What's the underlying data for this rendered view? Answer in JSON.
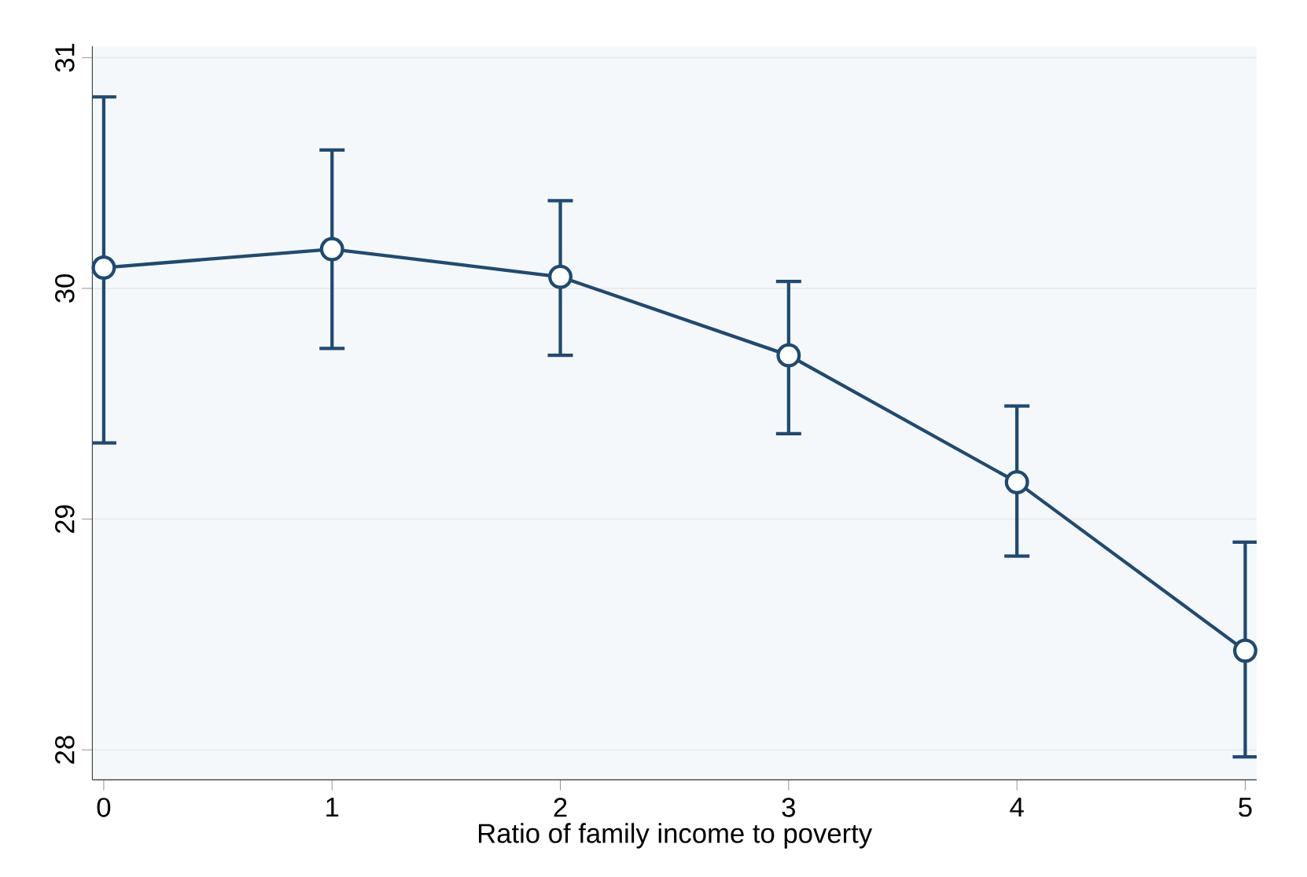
{
  "chart_data": {
    "type": "line",
    "xlabel": "Ratio of family income to poverty",
    "x": [
      0,
      1,
      2,
      3,
      4,
      5
    ],
    "series": [
      {
        "color": "#1f4a72",
        "values": [
          30.09,
          30.17,
          30.05,
          29.71,
          29.16,
          28.43
        ],
        "errors": [
          [
            29.33,
            30.83
          ],
          [
            29.74,
            30.6
          ],
          [
            29.71,
            30.38
          ],
          [
            29.37,
            30.03
          ],
          [
            28.84,
            29.49
          ],
          [
            27.97,
            28.9
          ]
        ]
      }
    ],
    "xlim": [
      -0.05,
      5.05
    ],
    "ylim": [
      27.87,
      31.05
    ],
    "xticks": [
      0,
      1,
      2,
      3,
      4,
      5
    ],
    "yticks": [
      28,
      29,
      30,
      31
    ],
    "grid": "y",
    "marker": "circle",
    "line_style": "solid"
  }
}
